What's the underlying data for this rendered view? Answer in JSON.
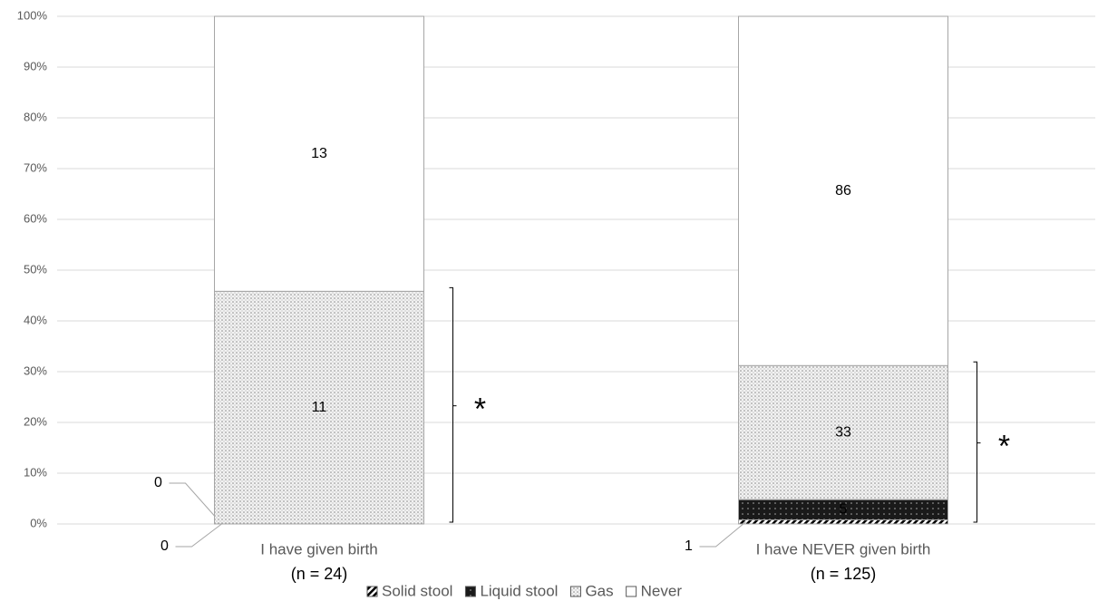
{
  "chart_data": {
    "type": "bar",
    "stacking": "percent",
    "categories": [
      "I have given birth",
      "I have NEVER given birth"
    ],
    "n_labels": [
      "(n = 24)",
      "(n = 125)"
    ],
    "series": [
      {
        "name": "Solid stool",
        "color": "#000000",
        "pattern": "hatch",
        "values": [
          0,
          1
        ]
      },
      {
        "name": "Liquid stool",
        "color": "#1a1a1a",
        "pattern": "dots-on-dark",
        "values": [
          0,
          5
        ]
      },
      {
        "name": "Gas",
        "color": "#7f7f7f",
        "pattern": "dots",
        "values": [
          11,
          33
        ]
      },
      {
        "name": "Never",
        "color": "#ffffff",
        "pattern": "none",
        "values": [
          13,
          86
        ]
      }
    ],
    "annotations": [
      "*",
      "*"
    ],
    "ylim": [
      0,
      100
    ],
    "yticks": [
      {
        "value": 0,
        "label": "0%"
      },
      {
        "value": 10,
        "label": "10%"
      },
      {
        "value": 20,
        "label": "20%"
      },
      {
        "value": 30,
        "label": "30%"
      },
      {
        "value": 40,
        "label": "40%"
      },
      {
        "value": 50,
        "label": "50%"
      },
      {
        "value": 60,
        "label": "60%"
      },
      {
        "value": 70,
        "label": "70%"
      },
      {
        "value": 80,
        "label": "80%"
      },
      {
        "value": 90,
        "label": "90%"
      },
      {
        "value": 100,
        "label": "100%"
      }
    ],
    "grid": true,
    "legend": "bottom"
  }
}
